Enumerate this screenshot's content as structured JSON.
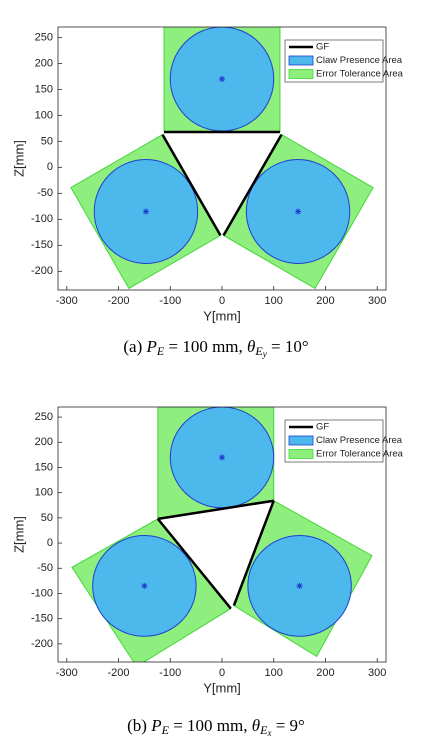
{
  "chart_data": [
    {
      "type": "patch",
      "xlabel": "Y[mm]",
      "ylabel": "Z[mm]",
      "xlim": [
        -317,
        317
      ],
      "ylim": [
        -236,
        270
      ],
      "xticks": [
        -300,
        -200,
        -100,
        0,
        100,
        200,
        300
      ],
      "yticks": [
        -200,
        -150,
        -100,
        -50,
        0,
        50,
        100,
        150,
        200,
        250
      ],
      "legend": "northeast",
      "series": [
        {
          "name": "GF",
          "color": "#000000",
          "segments": [
            {
              "x": [
                -112,
                112
              ],
              "y": [
                68,
                68
              ]
            },
            {
              "x": [
                -115,
                -3
              ],
              "y": [
                63,
                -131
              ]
            },
            {
              "x": [
                115,
                3
              ],
              "y": [
                63,
                -131
              ]
            }
          ]
        },
        {
          "name": "Claw Presence Area",
          "color": "#4db8ec",
          "edgecolor": "#1f3fd0",
          "circles": [
            {
              "cx": 0,
              "cy": 170,
              "r": 100
            },
            {
              "cx": -147,
              "cy": -85,
              "r": 100
            },
            {
              "cx": 147,
              "cy": -85,
              "r": 100
            }
          ]
        },
        {
          "name": "Error Tolerance Area",
          "color": "#8fef7e",
          "edgecolor": "#44d63a",
          "polygons": [
            {
              "x": [
                -112,
                112,
                112,
                -112
              ],
              "y": [
                68,
                68,
                272,
                272
              ]
            },
            {
              "x": [
                -115,
                -3,
                -180,
                -292
              ],
              "y": [
                63,
                -131,
                -233,
                -39
              ]
            },
            {
              "x": [
                115,
                3,
                180,
                292
              ],
              "y": [
                63,
                -131,
                -233,
                -39
              ]
            }
          ]
        }
      ],
      "caption": [
        {
          "text": "(a) "
        },
        {
          "text": "P",
          "style": "italic"
        },
        {
          "text": "E",
          "style": "sub"
        },
        {
          "text": " = 100 mm, "
        },
        {
          "text": "θ",
          "style": "italic"
        },
        {
          "text": "E",
          "style": "sub"
        },
        {
          "text": "y",
          "style": "subsub"
        },
        {
          "text": " = 10°"
        }
      ]
    },
    {
      "type": "patch",
      "xlabel": "Y[mm]",
      "ylabel": "Z[mm]",
      "xlim": [
        -317,
        317
      ],
      "ylim": [
        -236,
        270
      ],
      "xticks": [
        -300,
        -200,
        -100,
        0,
        100,
        200,
        300
      ],
      "yticks": [
        -200,
        -150,
        -100,
        -50,
        0,
        50,
        100,
        150,
        200,
        250
      ],
      "legend": "northeast",
      "series": [
        {
          "name": "GF",
          "color": "#000000",
          "segments": [
            {
              "x": [
                -124,
                100
              ],
              "y": [
                48,
                84
              ]
            },
            {
              "x": [
                -124,
                17
              ],
              "y": [
                48,
                -130
              ]
            },
            {
              "x": [
                100,
                23
              ],
              "y": [
                84,
                -124
              ]
            }
          ]
        },
        {
          "name": "Claw Presence Area",
          "color": "#4db8ec",
          "edgecolor": "#1f3fd0",
          "circles": [
            {
              "cx": 0,
              "cy": 170,
              "r": 100
            },
            {
              "cx": -150,
              "cy": -85,
              "r": 100
            },
            {
              "cx": 150,
              "cy": -85,
              "r": 100
            }
          ]
        },
        {
          "name": "Error Tolerance Area",
          "color": "#8fef7e",
          "edgecolor": "#44d63a",
          "polygons": [
            {
              "x": [
                -124,
                100,
                100,
                -124
              ],
              "y": [
                48,
                84,
                270,
                270
              ]
            },
            {
              "x": [
                -124,
                17,
                -165,
                -290
              ],
              "y": [
                48,
                -130,
                -245,
                -48
              ]
            },
            {
              "x": [
                100,
                23,
                183,
                290
              ],
              "y": [
                84,
                -124,
                -225,
                -25
              ]
            }
          ]
        }
      ],
      "caption": [
        {
          "text": "(b) "
        },
        {
          "text": "P",
          "style": "italic"
        },
        {
          "text": "E",
          "style": "sub"
        },
        {
          "text": " = 100 mm, "
        },
        {
          "text": "θ",
          "style": "italic"
        },
        {
          "text": "E",
          "style": "sub"
        },
        {
          "text": "x",
          "style": "subsub"
        },
        {
          "text": " = 9°"
        }
      ]
    }
  ]
}
